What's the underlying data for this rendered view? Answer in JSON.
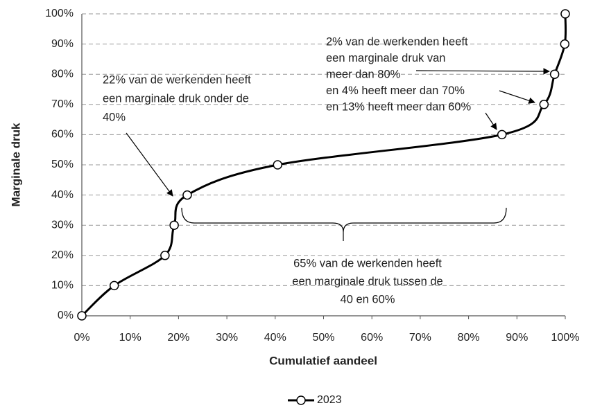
{
  "chart_data": {
    "type": "line",
    "xlabel": "Cumulatief aandeel",
    "ylabel": "Marginale druk",
    "series": [
      {
        "name": "2023",
        "color": "#000000",
        "x": [
          0,
          6.7,
          17.2,
          19.1,
          21.8,
          40.5,
          86.9,
          95.6,
          97.8,
          99.9,
          100
        ],
        "values": [
          0,
          10,
          20,
          30,
          40,
          50,
          60,
          70,
          80,
          90,
          100
        ]
      }
    ],
    "xlim": [
      0,
      100
    ],
    "ylim": [
      0,
      100
    ],
    "xticks": [
      {
        "value": 0,
        "label": "0%"
      },
      {
        "value": 10,
        "label": "10%"
      },
      {
        "value": 20,
        "label": "20%"
      },
      {
        "value": 30,
        "label": "30%"
      },
      {
        "value": 40,
        "label": "40%"
      },
      {
        "value": 50,
        "label": "50%"
      },
      {
        "value": 60,
        "label": "60%"
      },
      {
        "value": 70,
        "label": "70%"
      },
      {
        "value": 80,
        "label": "80%"
      },
      {
        "value": 90,
        "label": "90%"
      },
      {
        "value": 100,
        "label": "100%"
      }
    ],
    "yticks": [
      {
        "value": 0,
        "label": "0%"
      },
      {
        "value": 10,
        "label": "10%"
      },
      {
        "value": 20,
        "label": "20%"
      },
      {
        "value": 30,
        "label": "30%"
      },
      {
        "value": 40,
        "label": "40%"
      },
      {
        "value": 50,
        "label": "50%"
      },
      {
        "value": 60,
        "label": "60%"
      },
      {
        "value": 70,
        "label": "70%"
      },
      {
        "value": 80,
        "label": "80%"
      },
      {
        "value": 90,
        "label": "90%"
      },
      {
        "value": 100,
        "label": "100%"
      }
    ],
    "grid": true,
    "legend": "bottom",
    "annotations": [
      {
        "lines": [
          "22% van de werkenden heeft",
          "een marginale druk onder de",
          "40%"
        ]
      },
      {
        "lines": [
          "2% van de werkenden heeft",
          "een marginale druk van",
          "meer dan 80%",
          "en 4% heeft meer dan 70%",
          "en 13% heeft meer dan 60%"
        ]
      },
      {
        "lines": [
          "65% van de werkenden heeft",
          "een marginale druk tussen de",
          "40 en 60%"
        ]
      }
    ]
  }
}
